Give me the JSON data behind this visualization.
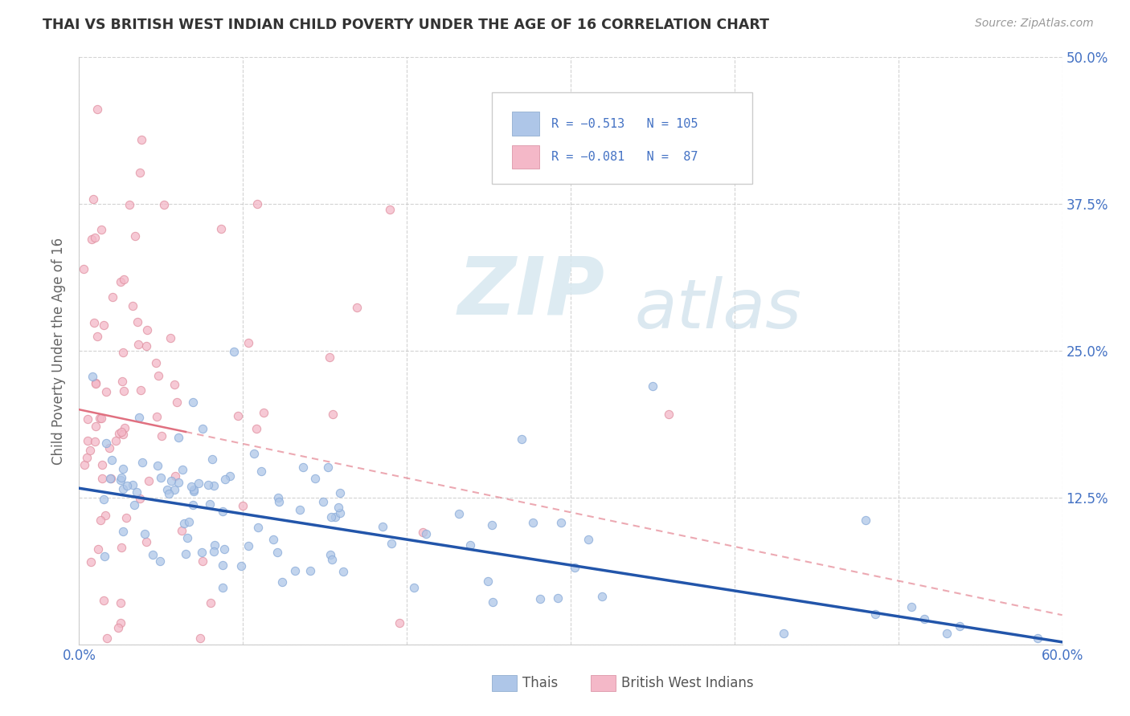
{
  "title": "THAI VS BRITISH WEST INDIAN CHILD POVERTY UNDER THE AGE OF 16 CORRELATION CHART",
  "source": "Source: ZipAtlas.com",
  "ylabel": "Child Poverty Under the Age of 16",
  "xlim": [
    0.0,
    0.6
  ],
  "ylim": [
    0.0,
    0.5
  ],
  "xticks": [
    0.0,
    0.1,
    0.2,
    0.3,
    0.4,
    0.5,
    0.6
  ],
  "yticks": [
    0.0,
    0.125,
    0.25,
    0.375,
    0.5
  ],
  "xtick_labels": [
    "0.0%",
    "",
    "",
    "",
    "",
    "",
    "60.0%"
  ],
  "ytick_labels": [
    "",
    "12.5%",
    "25.0%",
    "37.5%",
    "50.0%"
  ],
  "thai_color": "#aec6e8",
  "bwi_color": "#f4b8c8",
  "thai_line_color": "#2255aa",
  "bwi_line_color": "#e07080",
  "watermark_zip": "ZIP",
  "watermark_atlas": "atlas",
  "thai_R": -0.513,
  "thai_N": 105,
  "bwi_R": -0.081,
  "bwi_N": 87,
  "background_color": "#ffffff",
  "grid_color": "#c8c8c8",
  "title_color": "#333333",
  "axis_color": "#4472c4",
  "legend_label1": "R = −0.513   N = 105",
  "legend_label2": "R = −0.081   N =  87"
}
